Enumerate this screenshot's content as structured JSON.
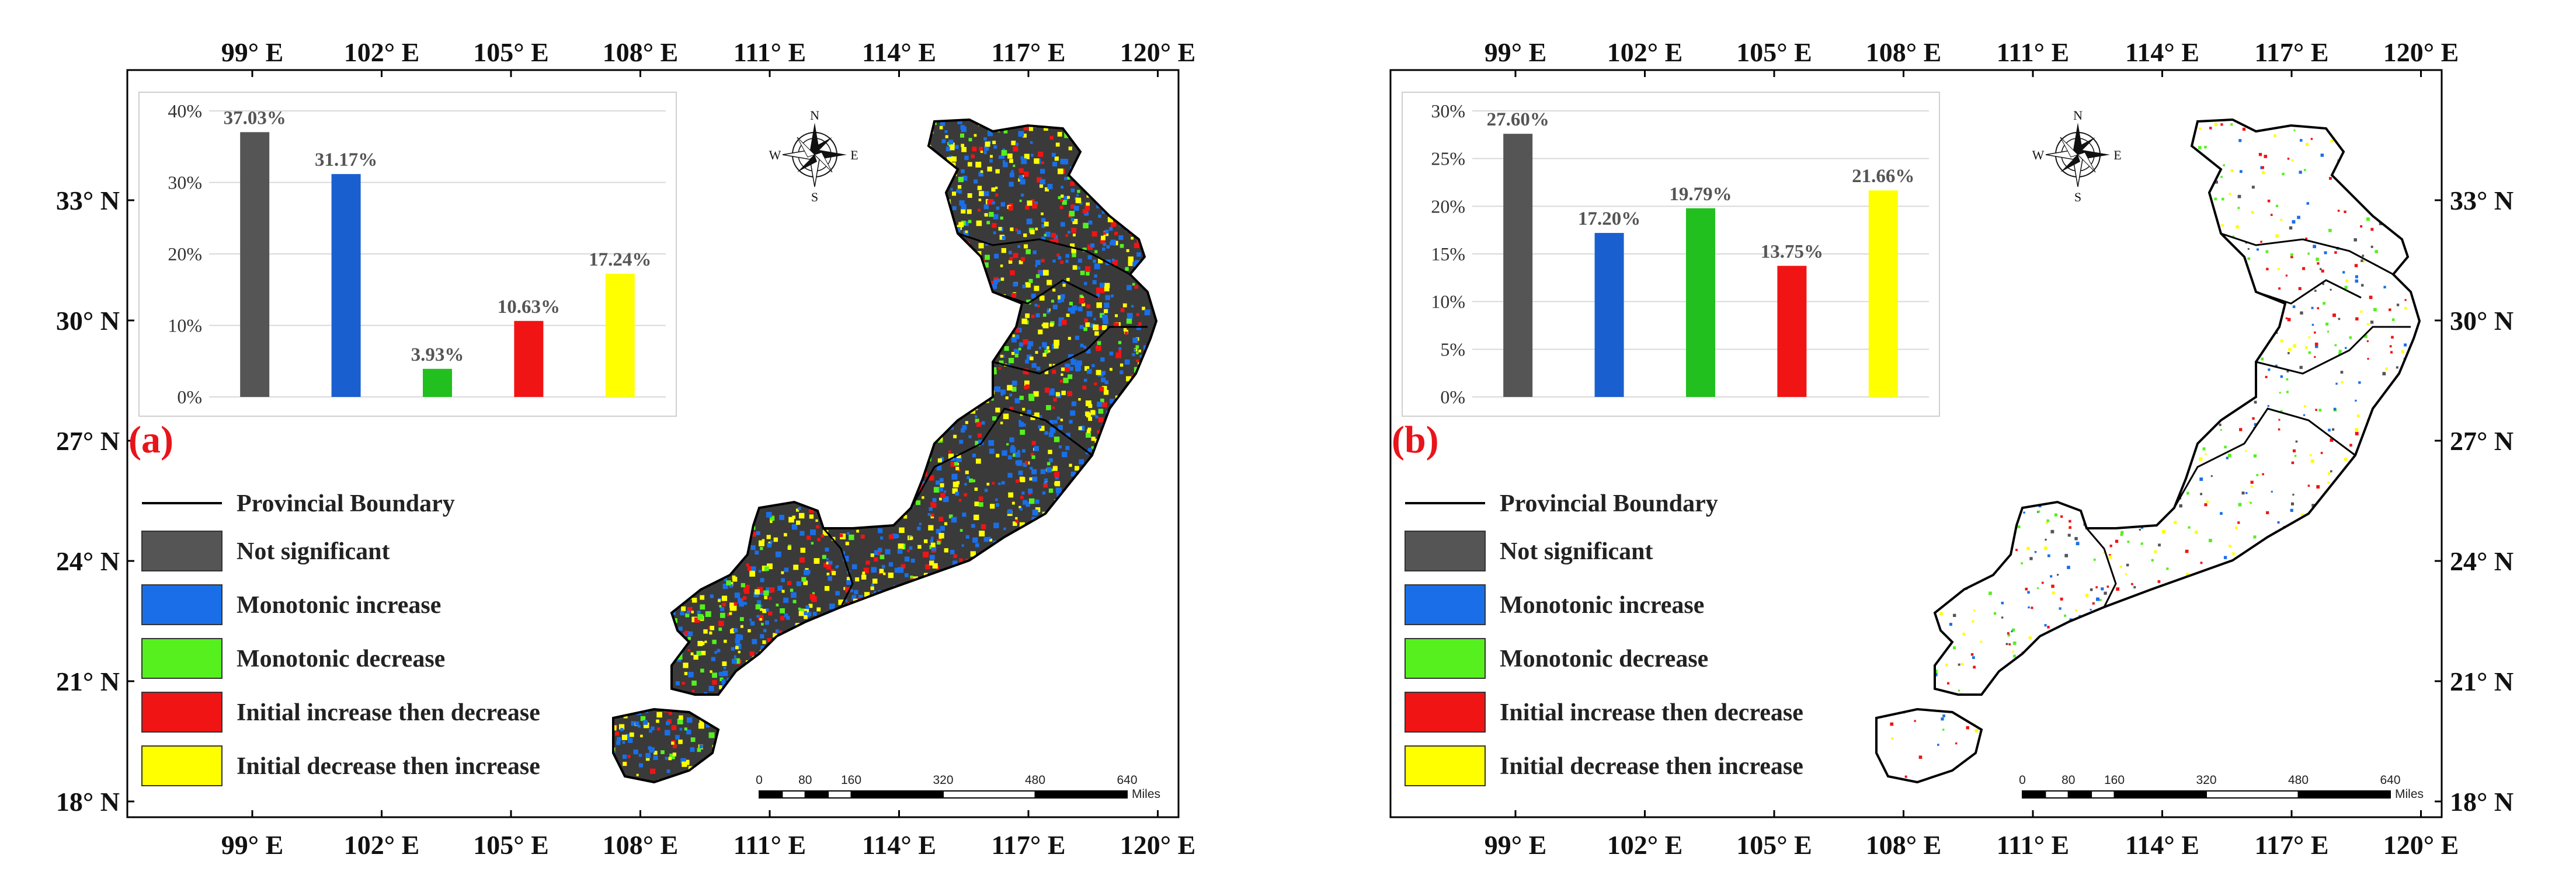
{
  "axes": {
    "lon_labels": [
      "99° E",
      "102° E",
      "105° E",
      "108° E",
      "111° E",
      "114° E",
      "117° E",
      "120° E"
    ],
    "lat_labels": [
      "33° N",
      "30° N",
      "27° N",
      "24° N",
      "21° N",
      "18° N"
    ]
  },
  "legend": {
    "boundary_label": "Provincial Boundary",
    "items": [
      {
        "label": "Not significant",
        "color": "#555555"
      },
      {
        "label": "Monotonic increase",
        "color": "#1a6fe8"
      },
      {
        "label": "Monotonic decrease",
        "color": "#55f01e"
      },
      {
        "label": "Initial increase then decrease",
        "color": "#f01414"
      },
      {
        "label": "Initial decrease then increase",
        "color": "#ffff00"
      }
    ]
  },
  "compass": {
    "n": "N",
    "s": "S",
    "e": "E",
    "w": "W"
  },
  "scale_bar": {
    "ticks": [
      "0",
      "80",
      "160",
      "320",
      "480",
      "640"
    ],
    "unit": "Miles"
  },
  "panels": [
    {
      "label": "(a)",
      "map_density": "high"
    },
    {
      "label": "(b)",
      "map_density": "low"
    }
  ],
  "chart_data": [
    {
      "type": "bar",
      "categories": [
        "Not significant",
        "Monotonic increase",
        "Monotonic decrease",
        "Initial increase then decrease",
        "Initial decrease then increase"
      ],
      "values": [
        37.03,
        31.17,
        3.93,
        10.63,
        17.24
      ],
      "data_labels": [
        "37.03%",
        "31.17%",
        "3.93%",
        "10.63%",
        "17.24%"
      ],
      "colors": [
        "#555555",
        "#1a5fd0",
        "#22c01e",
        "#f01414",
        "#ffff00"
      ],
      "yticks": [
        "0%",
        "10%",
        "20%",
        "30%",
        "40%"
      ],
      "ylim": [
        0,
        40
      ],
      "grid": true
    },
    {
      "type": "bar",
      "categories": [
        "Not significant",
        "Monotonic increase",
        "Monotonic decrease",
        "Initial increase then decrease",
        "Initial decrease then increase"
      ],
      "values": [
        27.6,
        17.2,
        19.79,
        13.75,
        21.66
      ],
      "data_labels": [
        "27.60%",
        "17.20%",
        "19.79%",
        "13.75%",
        "21.66%"
      ],
      "colors": [
        "#555555",
        "#1a5fd0",
        "#22c01e",
        "#f01414",
        "#ffff00"
      ],
      "yticks": [
        "0%",
        "5%",
        "10%",
        "15%",
        "20%",
        "25%",
        "30%"
      ],
      "ylim": [
        0,
        30
      ],
      "grid": true
    }
  ]
}
